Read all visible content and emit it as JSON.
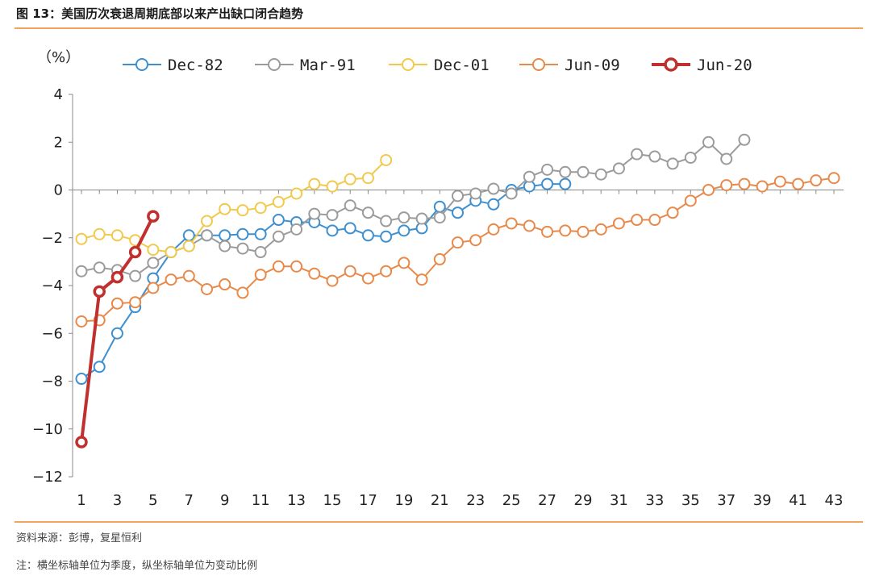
{
  "header": {
    "title": "图 13：美国历次衰退周期底部以来产出缺口闭合趋势"
  },
  "footer": {
    "source": "资料来源：彭博，复星恒利",
    "note": "注：横坐标轴单位为季度，纵坐标轴单位为变动比例"
  },
  "chart_data": {
    "type": "line",
    "title": "",
    "xlabel": "",
    "ylabel": "（%）",
    "xlim": [
      1,
      43
    ],
    "ylim": [
      -12,
      4
    ],
    "xticks": [
      1,
      3,
      5,
      7,
      9,
      11,
      13,
      15,
      17,
      19,
      21,
      23,
      25,
      27,
      29,
      31,
      33,
      35,
      37,
      39,
      41,
      43
    ],
    "yticks": [
      4,
      2,
      0,
      -2,
      -4,
      -6,
      -8,
      -10,
      -12
    ],
    "ytick_labels": [
      "4",
      "2",
      "0",
      "−2",
      "−4",
      "−6",
      "−8",
      "−10",
      "−12"
    ],
    "legend_position": "top",
    "grid": false,
    "series": [
      {
        "name": "Dec-82",
        "color": "#3d8fcf",
        "values": [
          -7.9,
          -7.4,
          -6.0,
          -4.9,
          -3.7,
          -2.6,
          -1.9,
          -1.9,
          -1.9,
          -1.85,
          -1.85,
          -1.25,
          -1.35,
          -1.35,
          -1.7,
          -1.6,
          -1.9,
          -1.95,
          -1.7,
          -1.6,
          -0.7,
          -0.95,
          -0.45,
          -0.6,
          0.0,
          0.15,
          0.25,
          0.25
        ]
      },
      {
        "name": "Mar-91",
        "color": "#9b9b9b",
        "values": [
          -3.4,
          -3.25,
          -3.35,
          -3.6,
          -3.05,
          -2.6,
          -2.35,
          -1.9,
          -2.35,
          -2.45,
          -2.6,
          -1.95,
          -1.65,
          -1.0,
          -1.05,
          -0.65,
          -0.95,
          -1.3,
          -1.15,
          -1.2,
          -1.15,
          -0.25,
          -0.15,
          0.05,
          -0.15,
          0.55,
          0.85,
          0.75,
          0.75,
          0.65,
          0.9,
          1.5,
          1.4,
          1.1,
          1.35,
          2.0,
          1.3,
          2.1
        ]
      },
      {
        "name": "Dec-01",
        "color": "#f2c94c",
        "values": [
          -2.05,
          -1.85,
          -1.9,
          -2.1,
          -2.5,
          -2.6,
          -2.35,
          -1.3,
          -0.8,
          -0.85,
          -0.75,
          -0.5,
          -0.15,
          0.25,
          0.15,
          0.45,
          0.5,
          1.25
        ]
      },
      {
        "name": "Jun-09",
        "color": "#e8894a",
        "values": [
          -5.5,
          -5.45,
          -4.75,
          -4.7,
          -4.1,
          -3.75,
          -3.6,
          -4.15,
          -3.95,
          -4.3,
          -3.55,
          -3.2,
          -3.2,
          -3.5,
          -3.8,
          -3.4,
          -3.7,
          -3.4,
          -3.05,
          -3.75,
          -2.9,
          -2.2,
          -2.1,
          -1.65,
          -1.4,
          -1.5,
          -1.75,
          -1.7,
          -1.75,
          -1.65,
          -1.4,
          -1.25,
          -1.25,
          -0.95,
          -0.45,
          0.0,
          0.2,
          0.25,
          0.15,
          0.35,
          0.25,
          0.4,
          0.5
        ]
      },
      {
        "name": "Jun-20",
        "color": "#c0302e",
        "values": [
          -10.55,
          -4.25,
          -3.65,
          -2.6,
          -1.1
        ]
      }
    ]
  }
}
